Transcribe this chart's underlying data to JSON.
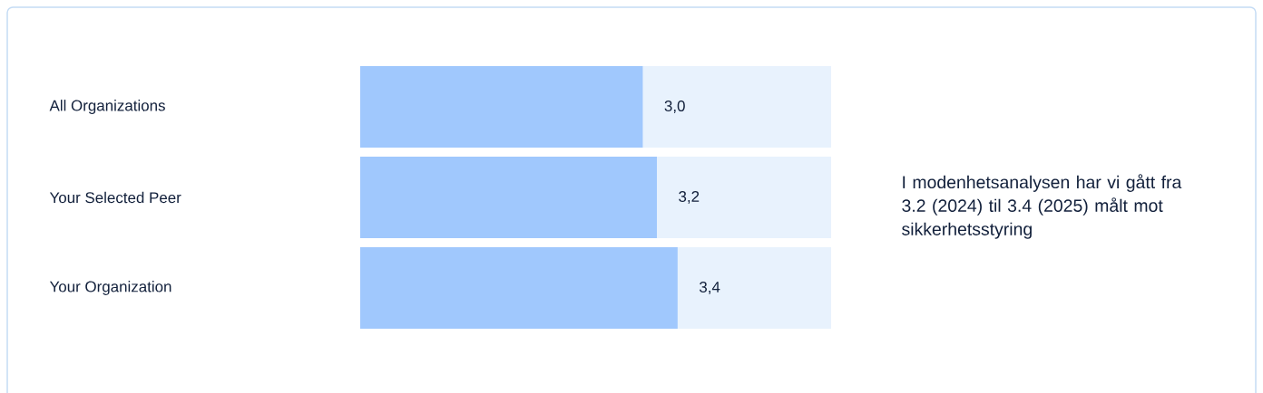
{
  "chart_data": {
    "type": "bar",
    "orientation": "horizontal",
    "categories": [
      "All Organizations",
      "Your Selected Peer",
      "Your Organization"
    ],
    "values": [
      3.0,
      3.15,
      3.37
    ],
    "value_labels": [
      "3,0",
      "3,2",
      "3,4"
    ],
    "color": "#a0c8fd",
    "xlim": [
      0,
      5
    ],
    "tick_labels": "y",
    "annotations": [
      "I modenhetsanalysen har vi gått fra 3.2 (2024) til 3.4 (2025) målt mot sikkerhetsstyring"
    ]
  }
}
